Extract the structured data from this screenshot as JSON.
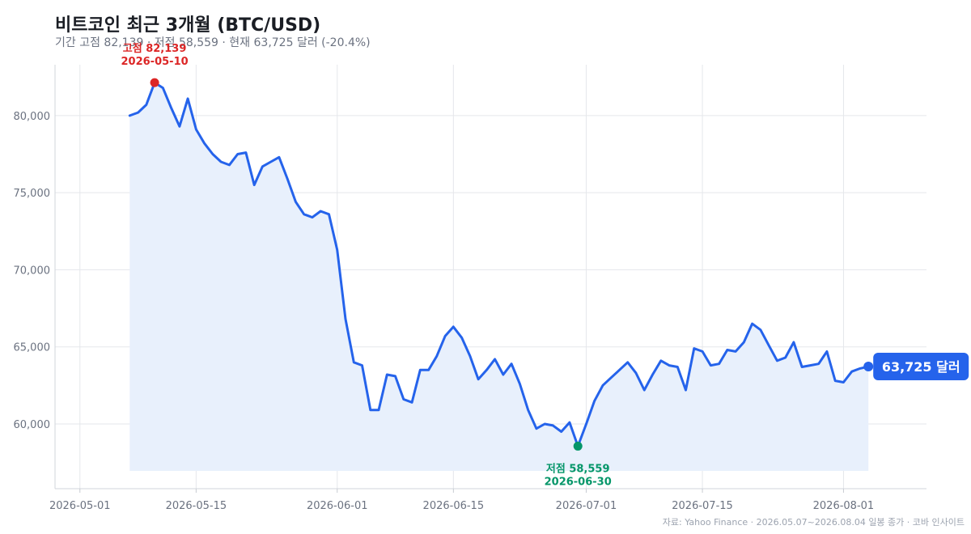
{
  "header": {
    "title": "비트코인 최근 3개월 (BTC/USD)",
    "subtitle": "기간 고점 82,139 · 저점 58,559 · 현재 63,725 달러 (-20.4%)"
  },
  "source": "자료: Yahoo Finance · 2026.05.07~2026.08.04 일봉 종가 · 코바 인사이트",
  "colors": {
    "line": "#2563eb",
    "area": "#e8f0fc",
    "high": "#dc2626",
    "low": "#059669",
    "grid": "#e5e7eb",
    "text": "#1a1d24",
    "muted": "#6b7280"
  },
  "chart_data": {
    "type": "line",
    "grid": true,
    "x_ticks": [
      "2026-05-01",
      "2026-05-15",
      "2026-06-01",
      "2026-06-15",
      "2026-07-01",
      "2026-07-15",
      "2026-08-01"
    ],
    "y_ticks": [
      "60,000",
      "65,000",
      "70,000",
      "75,000",
      "80,000"
    ],
    "xlim": [
      "2026-04-28",
      "2026-08-11"
    ],
    "ylim": [
      55800,
      83300
    ],
    "series": [
      {
        "x": [
          "2026-05-07",
          "2026-05-08",
          "2026-05-09",
          "2026-05-10",
          "2026-05-11",
          "2026-05-12",
          "2026-05-13",
          "2026-05-14",
          "2026-05-15",
          "2026-05-16",
          "2026-05-17",
          "2026-05-18",
          "2026-05-19",
          "2026-05-20",
          "2026-05-21",
          "2026-05-22",
          "2026-05-23",
          "2026-05-24",
          "2026-05-25",
          "2026-05-26",
          "2026-05-27",
          "2026-05-28",
          "2026-05-29",
          "2026-05-30",
          "2026-05-31",
          "2026-06-01",
          "2026-06-02",
          "2026-06-03",
          "2026-06-04",
          "2026-06-05",
          "2026-06-06",
          "2026-06-07",
          "2026-06-08",
          "2026-06-09",
          "2026-06-10",
          "2026-06-11",
          "2026-06-12",
          "2026-06-13",
          "2026-06-14",
          "2026-06-15",
          "2026-06-16",
          "2026-06-17",
          "2026-06-18",
          "2026-06-19",
          "2026-06-20",
          "2026-06-21",
          "2026-06-22",
          "2026-06-23",
          "2026-06-24",
          "2026-06-25",
          "2026-06-26",
          "2026-06-27",
          "2026-06-28",
          "2026-06-29",
          "2026-06-30",
          "2026-07-01",
          "2026-07-02",
          "2026-07-03",
          "2026-07-04",
          "2026-07-05",
          "2026-07-06",
          "2026-07-07",
          "2026-07-08",
          "2026-07-09",
          "2026-07-10",
          "2026-07-11",
          "2026-07-12",
          "2026-07-13",
          "2026-07-14",
          "2026-07-15",
          "2026-07-16",
          "2026-07-17",
          "2026-07-18",
          "2026-07-19",
          "2026-07-20",
          "2026-07-21",
          "2026-07-22",
          "2026-07-23",
          "2026-07-24",
          "2026-07-25",
          "2026-07-26",
          "2026-07-27",
          "2026-07-28",
          "2026-07-29",
          "2026-07-30",
          "2026-07-31",
          "2026-08-01",
          "2026-08-02",
          "2026-08-03",
          "2026-08-04"
        ],
        "y": [
          80000,
          80200,
          80700,
          82139,
          81800,
          80500,
          79300,
          81100,
          79100,
          78200,
          77500,
          77000,
          76800,
          77500,
          77600,
          75500,
          76700,
          77000,
          77300,
          75900,
          74400,
          73600,
          73400,
          73800,
          73600,
          71300,
          66800,
          64000,
          63800,
          60900,
          60900,
          63200,
          63100,
          61600,
          61400,
          63500,
          63500,
          64400,
          65700,
          66300,
          65600,
          64400,
          62900,
          63500,
          64200,
          63200,
          63900,
          62600,
          60900,
          59700,
          60000,
          59900,
          59500,
          60100,
          58559,
          60000,
          61500,
          62500,
          63000,
          63500,
          64000,
          63300,
          62200,
          63200,
          64100,
          63800,
          63700,
          62200,
          64900,
          64700,
          63800,
          63900,
          64800,
          64700,
          65300,
          66500,
          66100,
          65100,
          64100,
          64300,
          65300,
          63700,
          63800,
          63900,
          64700,
          62800,
          62700,
          63400,
          63600,
          63725
        ]
      }
    ],
    "annotations": {
      "high": {
        "label": "고점 82,139",
        "date": "2026-05-10",
        "value": 82139
      },
      "low": {
        "label": "저점 58,559",
        "date": "2026-06-30",
        "value": 58559
      },
      "last": {
        "label": "63,725 달러",
        "date": "2026-08-04",
        "value": 63725
      }
    }
  }
}
